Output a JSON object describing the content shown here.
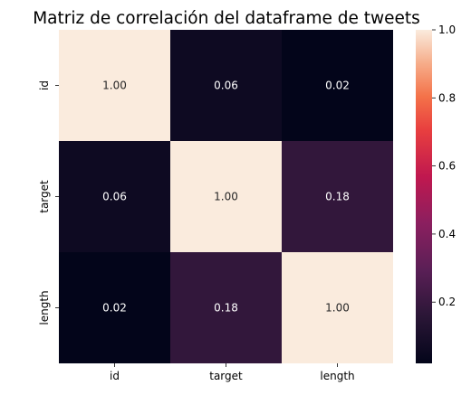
{
  "chart_data": {
    "type": "heatmap",
    "title": "Matriz de correlación del dataframe de tweets",
    "x_categories": [
      "id",
      "target",
      "length"
    ],
    "y_categories": [
      "id",
      "target",
      "length"
    ],
    "values": [
      [
        1.0,
        0.06,
        0.02
      ],
      [
        0.06,
        1.0,
        0.18
      ],
      [
        0.02,
        0.18,
        1.0
      ]
    ],
    "cell_labels": [
      [
        "1.00",
        "0.06",
        "0.02"
      ],
      [
        "0.06",
        "1.00",
        "0.18"
      ],
      [
        "0.02",
        "0.18",
        "1.00"
      ]
    ],
    "colorbar": {
      "range": [
        0.02,
        1.0
      ],
      "ticks": [
        0.2,
        0.4,
        0.6,
        0.8,
        1.0
      ],
      "tick_labels": [
        "0.2",
        "0.4",
        "0.6",
        "0.8",
        "1.0"
      ],
      "colormap": "rocket"
    },
    "grid": false,
    "legend": "colorbar-right"
  }
}
